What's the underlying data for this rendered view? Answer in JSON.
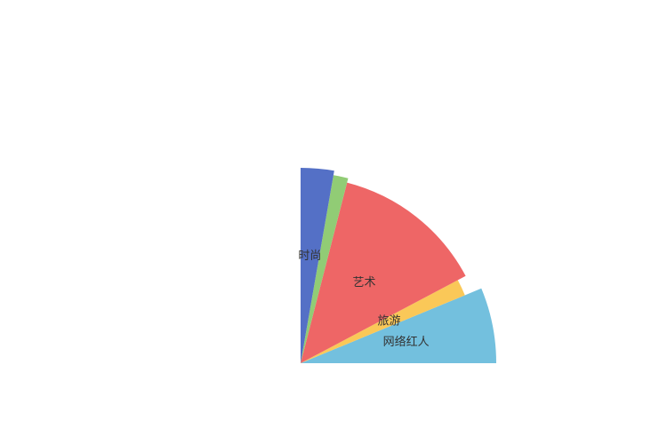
{
  "chart_data": {
    "type": "pie",
    "variant": "rose",
    "title": "",
    "start_angle_deg": 0,
    "end_angle_deg": 90,
    "direction": "counterclockwise",
    "slices": [
      {
        "label": "网络红人",
        "value": 22.0,
        "angle_share": 0.25,
        "color": "#73c0de",
        "show_label": true
      },
      {
        "label": "旅游",
        "value": 20.0,
        "angle_share": 0.06,
        "color": "#fac858",
        "show_label": true
      },
      {
        "label": "艺术",
        "value": 21.0,
        "angle_share": 0.53,
        "color": "#ee6666",
        "show_label": true
      },
      {
        "label": "",
        "value": 21.5,
        "angle_share": 0.05,
        "color": "#91cc75",
        "show_label": false
      },
      {
        "label": "时尚",
        "value": 22.0,
        "angle_share": 0.11,
        "color": "#5470c6",
        "show_label": true
      }
    ]
  }
}
